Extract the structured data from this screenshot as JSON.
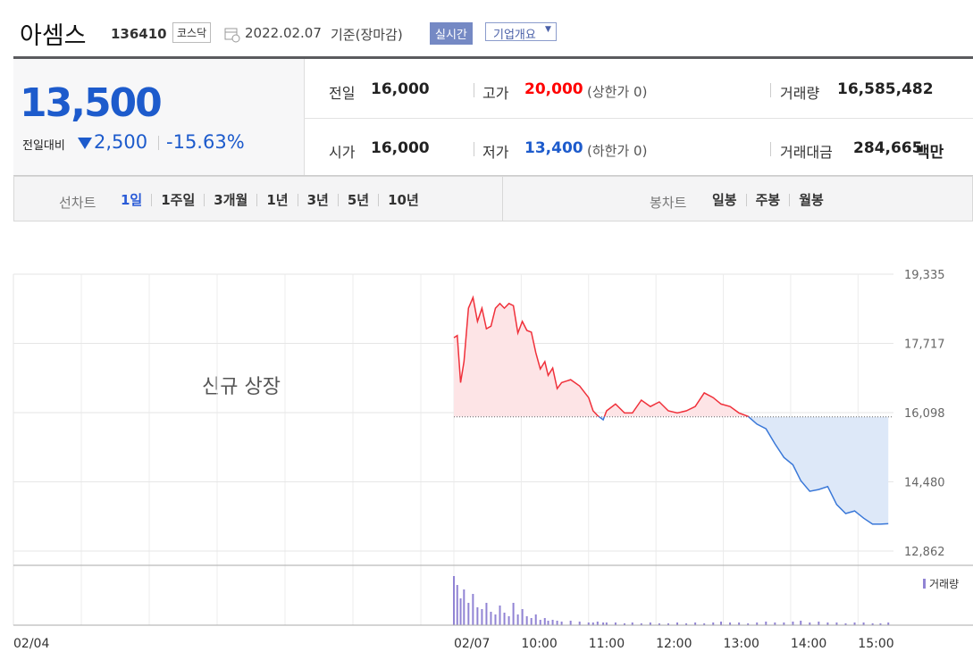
{
  "header": {
    "name": "아셈스",
    "code": "136410",
    "market": "코스닥",
    "date": "2022.02.07",
    "basis": "기준(장마감)",
    "realtime": "실시간",
    "company": "기업개요"
  },
  "quote": {
    "price": "13,500",
    "change_label": "전일대비",
    "change": "2,500",
    "rate": "-15.63%"
  },
  "info": [
    [
      {
        "label": "전일",
        "value": "16,000"
      },
      {
        "label": "고가",
        "value": "20,000",
        "note": "(상한가 0)"
      },
      {
        "label": "거래량",
        "value": "16,585,482"
      }
    ],
    [
      {
        "label": "시가",
        "value": "16,000"
      },
      {
        "label": "저가",
        "value": "13,400",
        "note": "(하한가 0)"
      },
      {
        "label": "거래대금",
        "value": "284,665",
        "unit": "백만"
      }
    ]
  ],
  "tabs": {
    "line_label": "선차트",
    "line_tabs": [
      "1일",
      "1주일",
      "3개월",
      "1년",
      "3년",
      "5년",
      "10년"
    ],
    "candle_label": "봉차트",
    "candle_tabs": [
      "일봉",
      "주봉",
      "월봉"
    ]
  },
  "chart_data": {
    "type": "line",
    "annotation": "신규 상장",
    "x_start_label": "02/04",
    "x": [
      "09:00",
      "09:03",
      "09:06",
      "09:09",
      "09:13",
      "09:17",
      "09:21",
      "09:25",
      "09:29",
      "09:33",
      "09:37",
      "09:41",
      "09:45",
      "09:49",
      "09:53",
      "09:57",
      "10:01",
      "10:05",
      "10:09",
      "10:13",
      "10:17",
      "10:21",
      "10:24",
      "10:28",
      "10:32",
      "10:36",
      "10:44",
      "10:52",
      "11:00",
      "11:04",
      "11:08",
      "11:13",
      "11:16",
      "11:24",
      "11:32",
      "11:39",
      "11:47",
      "11:55",
      "12:03",
      "12:11",
      "12:19",
      "12:27",
      "12:35",
      "12:43",
      "12:51",
      "12:58",
      "13:06",
      "13:14",
      "13:22",
      "13:30",
      "13:38",
      "13:46",
      "13:54",
      "14:02",
      "14:09",
      "14:17",
      "14:25",
      "14:33",
      "14:41",
      "14:49",
      "14:57",
      "15:05",
      "15:13",
      "15:20",
      "15:27"
    ],
    "series": [
      {
        "color_up": "#f0303a",
        "color_down": "#3a78d8",
        "fill_up": "#fde4e6",
        "fill_down": "#dde8f8",
        "values": [
          17850,
          17900,
          16800,
          17290,
          18540,
          18790,
          18230,
          18540,
          18060,
          18120,
          18540,
          18650,
          18540,
          18650,
          18600,
          17960,
          18230,
          18020,
          17980,
          17500,
          17120,
          17290,
          16970,
          17140,
          16660,
          16800,
          16870,
          16720,
          16450,
          16140,
          16030,
          15930,
          16140,
          16300,
          16090,
          16090,
          16390,
          16240,
          16350,
          16140,
          16090,
          16140,
          16240,
          16560,
          16450,
          16300,
          16240,
          16090,
          16010,
          15830,
          15720,
          15370,
          15050,
          14880,
          14510,
          14260,
          14300,
          14370,
          13950,
          13740,
          13800,
          13630,
          13490,
          13490,
          13500
        ]
      }
    ],
    "baseline": 16000,
    "xlim": [
      "09:00",
      "15:30"
    ],
    "xticks": [
      {
        "value": "09:00",
        "label": "02/07"
      },
      "10:00",
      "11:00",
      "12:00",
      "13:00",
      "14:00",
      "15:00"
    ],
    "ylim": [
      12528,
      19335
    ],
    "yticks": [
      {
        "value": 19335,
        "label": "19,335"
      },
      {
        "value": 17717,
        "label": "17,717"
      },
      {
        "value": 16098,
        "label": "16,098"
      },
      {
        "value": 14480,
        "label": "14,480"
      },
      {
        "value": 12862,
        "label": "12,862"
      }
    ],
    "grid": true,
    "volume": {
      "name": "거래량",
      "color": "#9184d4",
      "ylim": [
        0,
        60
      ],
      "values": [
        55,
        45,
        30,
        40,
        25,
        35,
        20,
        18,
        25,
        15,
        12,
        22,
        14,
        10,
        25,
        12,
        18,
        10,
        8,
        12,
        6,
        8,
        5,
        6,
        5,
        4,
        5,
        4,
        3,
        3,
        4,
        3,
        3,
        3,
        2,
        3,
        2,
        3,
        2,
        2,
        3,
        2,
        3,
        2,
        3,
        4,
        3,
        3,
        2,
        3,
        4,
        3,
        3,
        4,
        5,
        3,
        4,
        3,
        3,
        2,
        3,
        3,
        2,
        2,
        3
      ]
    }
  }
}
